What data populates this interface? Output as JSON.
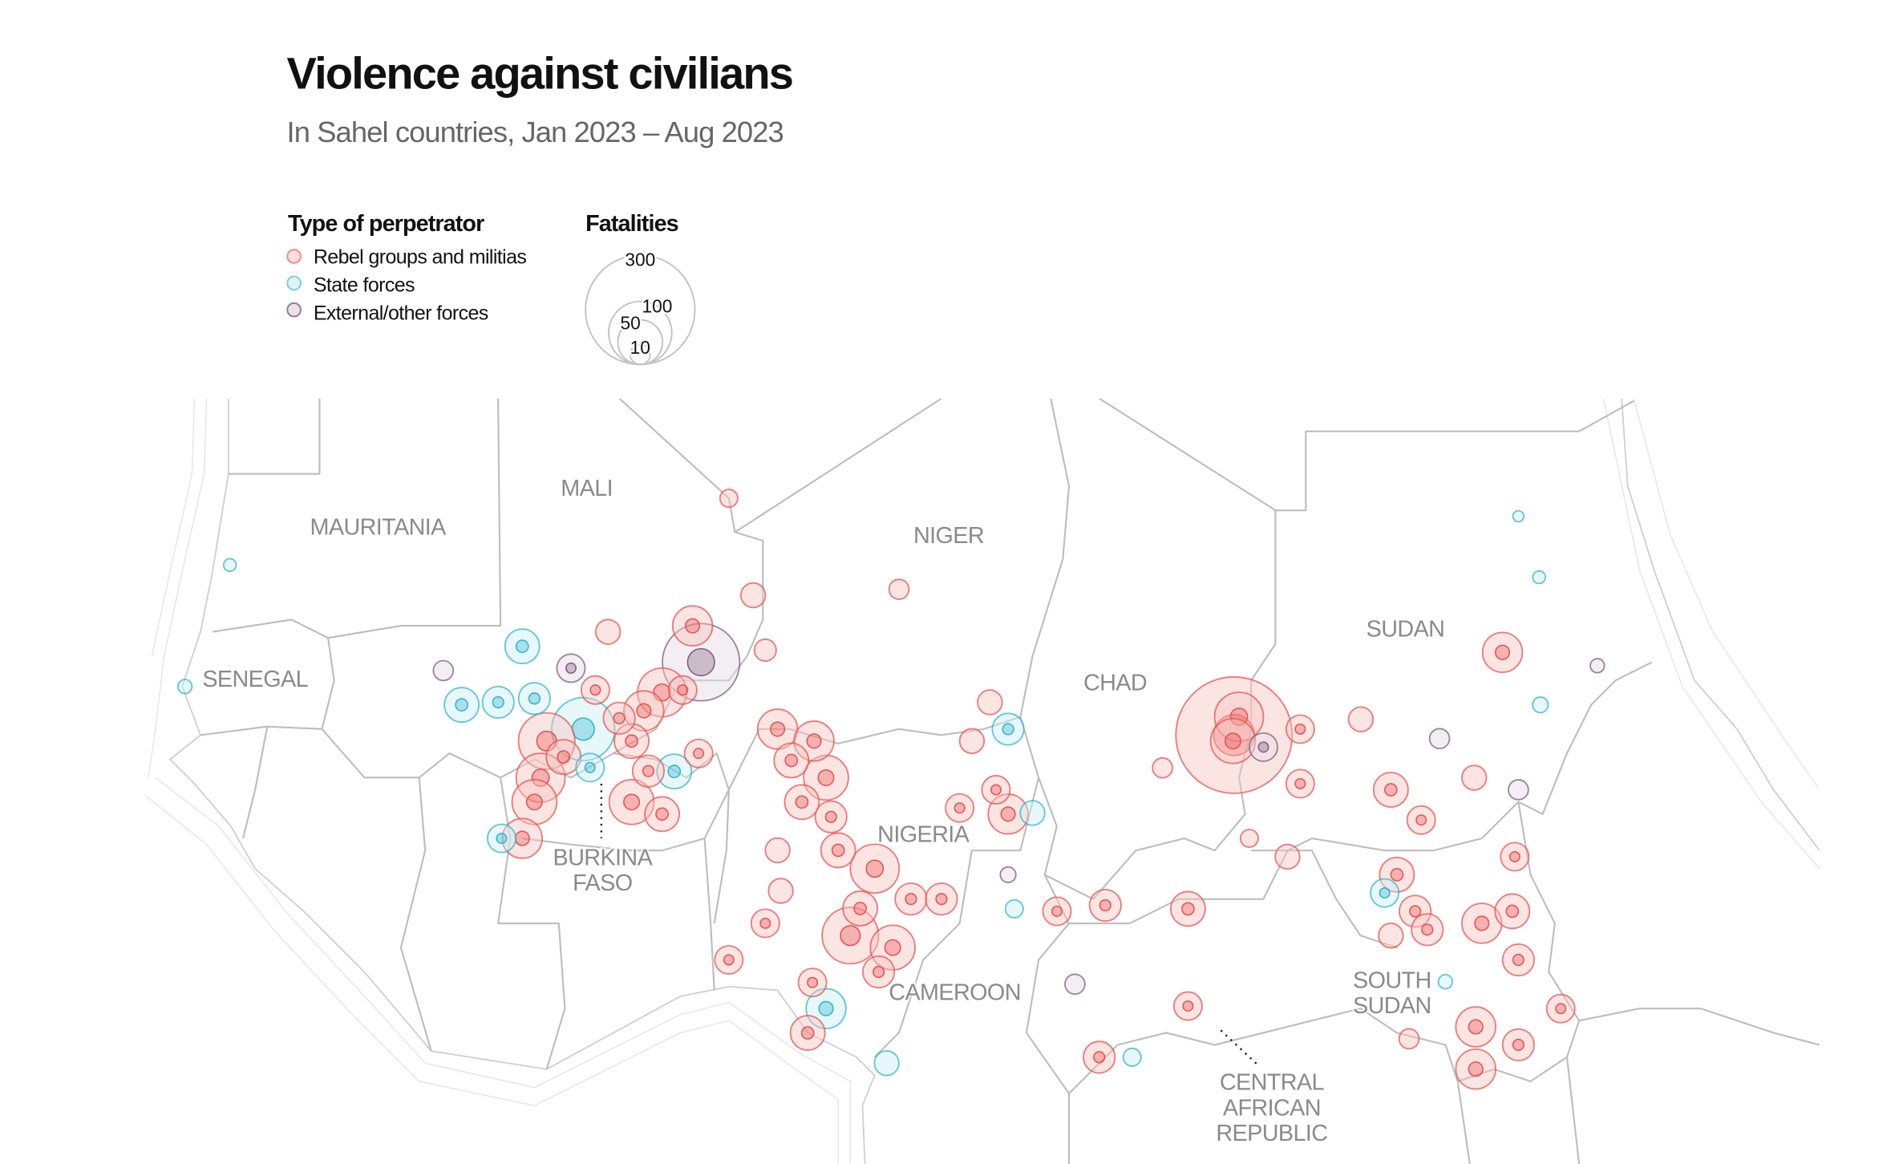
{
  "header": {
    "title": "Violence against civilians",
    "subtitle": "In Sahel countries, Jan 2023 – Aug 2023"
  },
  "legend": {
    "type_title": "Type of perpetrator",
    "types": [
      {
        "key": "r",
        "label": "Rebel groups and militias",
        "fill": "#f6c6c2",
        "stroke": "#e8504f"
      },
      {
        "key": "s",
        "label": "State forces",
        "fill": "#cdeef4",
        "stroke": "#2bb5cc"
      },
      {
        "key": "e",
        "label": "External/other forces",
        "fill": "#e4d9e4",
        "stroke": "#7c5c7c"
      }
    ],
    "size_title": "Fatalities",
    "sizes": [
      {
        "value": 300,
        "label": "300"
      },
      {
        "value": 100,
        "label": "100"
      },
      {
        "value": 50,
        "label": "50"
      },
      {
        "value": 10,
        "label": "10"
      }
    ]
  },
  "countries": {
    "mauritania": "MAURITANIA",
    "mali": "MALI",
    "niger": "NIGER",
    "senegal": "SENEGAL",
    "chad": "CHAD",
    "sudan": "SUDAN",
    "nigeria": "NIGERIA",
    "burkina_1": "BURKINA",
    "burkina_2": "FASO",
    "cameroon": "CAMEROON",
    "south_sudan_1": "SOUTH",
    "south_sudan_2": "SUDAN",
    "car_1": "CENTRAL",
    "car_2": "AFRICAN",
    "car_3": "REPUBLIC"
  },
  "map_data": {
    "fields": [
      "lon",
      "lat",
      "fatalities",
      "type"
    ],
    "events": [
      [
        1.87,
        16.42,
        40,
        "r"
      ],
      [
        2.19,
        15.39,
        150,
        "e"
      ],
      [
        0.72,
        14.53,
        60,
        "r"
      ],
      [
        0.03,
        14.01,
        40,
        "r"
      ],
      [
        -2.26,
        13.49,
        100,
        "s"
      ],
      [
        -3.64,
        13.15,
        80,
        "r"
      ],
      [
        -4.56,
        15.84,
        30,
        "s"
      ],
      [
        -6.85,
        14.18,
        30,
        "s"
      ],
      [
        -5.47,
        14.25,
        25,
        "s"
      ],
      [
        -4.1,
        14.36,
        25,
        "s"
      ],
      [
        -2.72,
        15.22,
        20,
        "e"
      ],
      [
        -7.54,
        15.15,
        10,
        "e"
      ],
      [
        -3.87,
        12.11,
        60,
        "r"
      ],
      [
        -4.1,
        11.42,
        50,
        "r"
      ],
      [
        -4.56,
        10.39,
        40,
        "r"
      ],
      [
        -0.43,
        11.42,
        50,
        "r"
      ],
      [
        0.72,
        11.08,
        30,
        "r"
      ],
      [
        1.18,
        12.29,
        30,
        "s"
      ],
      [
        -0.43,
        13.15,
        30,
        "r"
      ],
      [
        -1.32,
        16.25,
        15,
        "r"
      ],
      [
        4.16,
        17.29,
        15,
        "r"
      ],
      [
        3.24,
        20.04,
        8,
        "r"
      ],
      [
        2.1,
        12.8,
        20,
        "r"
      ],
      [
        -17.3,
        14.7,
        5,
        "s"
      ],
      [
        -15.6,
        18.15,
        4,
        "s"
      ],
      [
        -5.34,
        10.39,
        20,
        "s"
      ],
      [
        -1.8,
        14.6,
        20,
        "r"
      ],
      [
        -0.9,
        13.8,
        25,
        "r"
      ],
      [
        -3.0,
        12.7,
        30,
        "r"
      ],
      [
        -2.0,
        12.4,
        20,
        "s"
      ],
      [
        0.2,
        12.3,
        25,
        "r"
      ],
      [
        1.5,
        14.6,
        20,
        "r"
      ],
      [
        5.08,
        13.49,
        40,
        "r"
      ],
      [
        6.46,
        13.15,
        40,
        "r"
      ],
      [
        6.91,
        12.11,
        50,
        "r"
      ],
      [
        6.0,
        11.42,
        30,
        "r"
      ],
      [
        7.37,
        10.05,
        30,
        "r"
      ],
      [
        8.75,
        9.53,
        60,
        "r"
      ],
      [
        7.83,
        7.63,
        80,
        "r"
      ],
      [
        9.43,
        7.29,
        50,
        "r"
      ],
      [
        6.91,
        5.56,
        40,
        "s"
      ],
      [
        6.22,
        4.87,
        30,
        "r"
      ],
      [
        9.2,
        4.01,
        15,
        "s"
      ],
      [
        3.24,
        6.94,
        20,
        "r"
      ],
      [
        4.62,
        7.98,
        20,
        "r"
      ],
      [
        5.08,
        10.05,
        15,
        "r"
      ],
      [
        10.12,
        8.67,
        25,
        "r"
      ],
      [
        11.27,
        8.67,
        25,
        "r"
      ],
      [
        5.6,
        12.6,
        30,
        "r"
      ],
      [
        7.1,
        11.0,
        25,
        "r"
      ],
      [
        8.2,
        8.4,
        30,
        "r"
      ],
      [
        8.9,
        6.6,
        25,
        "r"
      ],
      [
        6.4,
        6.3,
        20,
        "r"
      ],
      [
        5.2,
        8.9,
        15,
        "r"
      ],
      [
        13.79,
        11.08,
        40,
        "r"
      ],
      [
        13.33,
        11.77,
        20,
        "r"
      ],
      [
        12.42,
        13.15,
        15,
        "r"
      ],
      [
        13.79,
        13.49,
        25,
        "s"
      ],
      [
        13.1,
        14.25,
        15,
        "r"
      ],
      [
        14.71,
        11.11,
        15,
        "s"
      ],
      [
        11.96,
        11.25,
        20,
        "r"
      ],
      [
        9.67,
        17.46,
        10,
        "r"
      ],
      [
        4.62,
        15.73,
        12,
        "r"
      ],
      [
        15.63,
        8.32,
        20,
        "r"
      ],
      [
        17.46,
        8.49,
        25,
        "r"
      ],
      [
        16.31,
        6.25,
        10,
        "e"
      ],
      [
        17.23,
        4.18,
        25,
        "r"
      ],
      [
        20.58,
        8.39,
        30,
        "r"
      ],
      [
        20.58,
        5.63,
        20,
        "r"
      ],
      [
        14.02,
        8.39,
        8,
        "s"
      ],
      [
        13.79,
        9.36,
        6,
        "e"
      ],
      [
        18.47,
        4.18,
        8,
        "s"
      ],
      [
        22.32,
        13.32,
        340,
        "r"
      ],
      [
        22.51,
        13.84,
        60,
        "r"
      ],
      [
        22.28,
        13.15,
        50,
        "r"
      ],
      [
        23.43,
        12.98,
        20,
        "e"
      ],
      [
        24.82,
        13.49,
        20,
        "r"
      ],
      [
        24.82,
        11.94,
        20,
        "r"
      ],
      [
        27.11,
        13.77,
        15,
        "r"
      ],
      [
        19.62,
        12.39,
        10,
        "r"
      ],
      [
        22.9,
        10.39,
        8,
        "r"
      ],
      [
        24.34,
        9.87,
        15,
        "r"
      ],
      [
        32.46,
        15.67,
        40,
        "r"
      ],
      [
        28.24,
        11.77,
        30,
        "r"
      ],
      [
        29.39,
        10.91,
        20,
        "r"
      ],
      [
        31.39,
        12.11,
        15,
        "r"
      ],
      [
        33.06,
        11.77,
        10,
        "e"
      ],
      [
        33.89,
        14.18,
        6,
        "s"
      ],
      [
        32.92,
        9.87,
        20,
        "r"
      ],
      [
        30.08,
        13.22,
        10,
        "e"
      ],
      [
        33.06,
        19.53,
        3,
        "s"
      ],
      [
        33.84,
        17.8,
        4,
        "s"
      ],
      [
        36.04,
        15.29,
        5,
        "e"
      ],
      [
        28.47,
        9.36,
        30,
        "r"
      ],
      [
        29.16,
        8.32,
        25,
        "r"
      ],
      [
        29.62,
        7.8,
        25,
        "r"
      ],
      [
        28.01,
        8.84,
        20,
        "s"
      ],
      [
        31.68,
        7.98,
        40,
        "r"
      ],
      [
        32.83,
        8.32,
        30,
        "r"
      ],
      [
        33.06,
        6.94,
        25,
        "r"
      ],
      [
        31.45,
        5.04,
        40,
        "r"
      ],
      [
        33.06,
        4.53,
        25,
        "r"
      ],
      [
        31.45,
        3.84,
        40,
        "r"
      ],
      [
        34.66,
        5.56,
        20,
        "r"
      ],
      [
        28.24,
        7.63,
        15,
        "r"
      ],
      [
        28.93,
        4.7,
        10,
        "r"
      ],
      [
        30.3,
        6.32,
        5,
        "s"
      ]
    ]
  }
}
